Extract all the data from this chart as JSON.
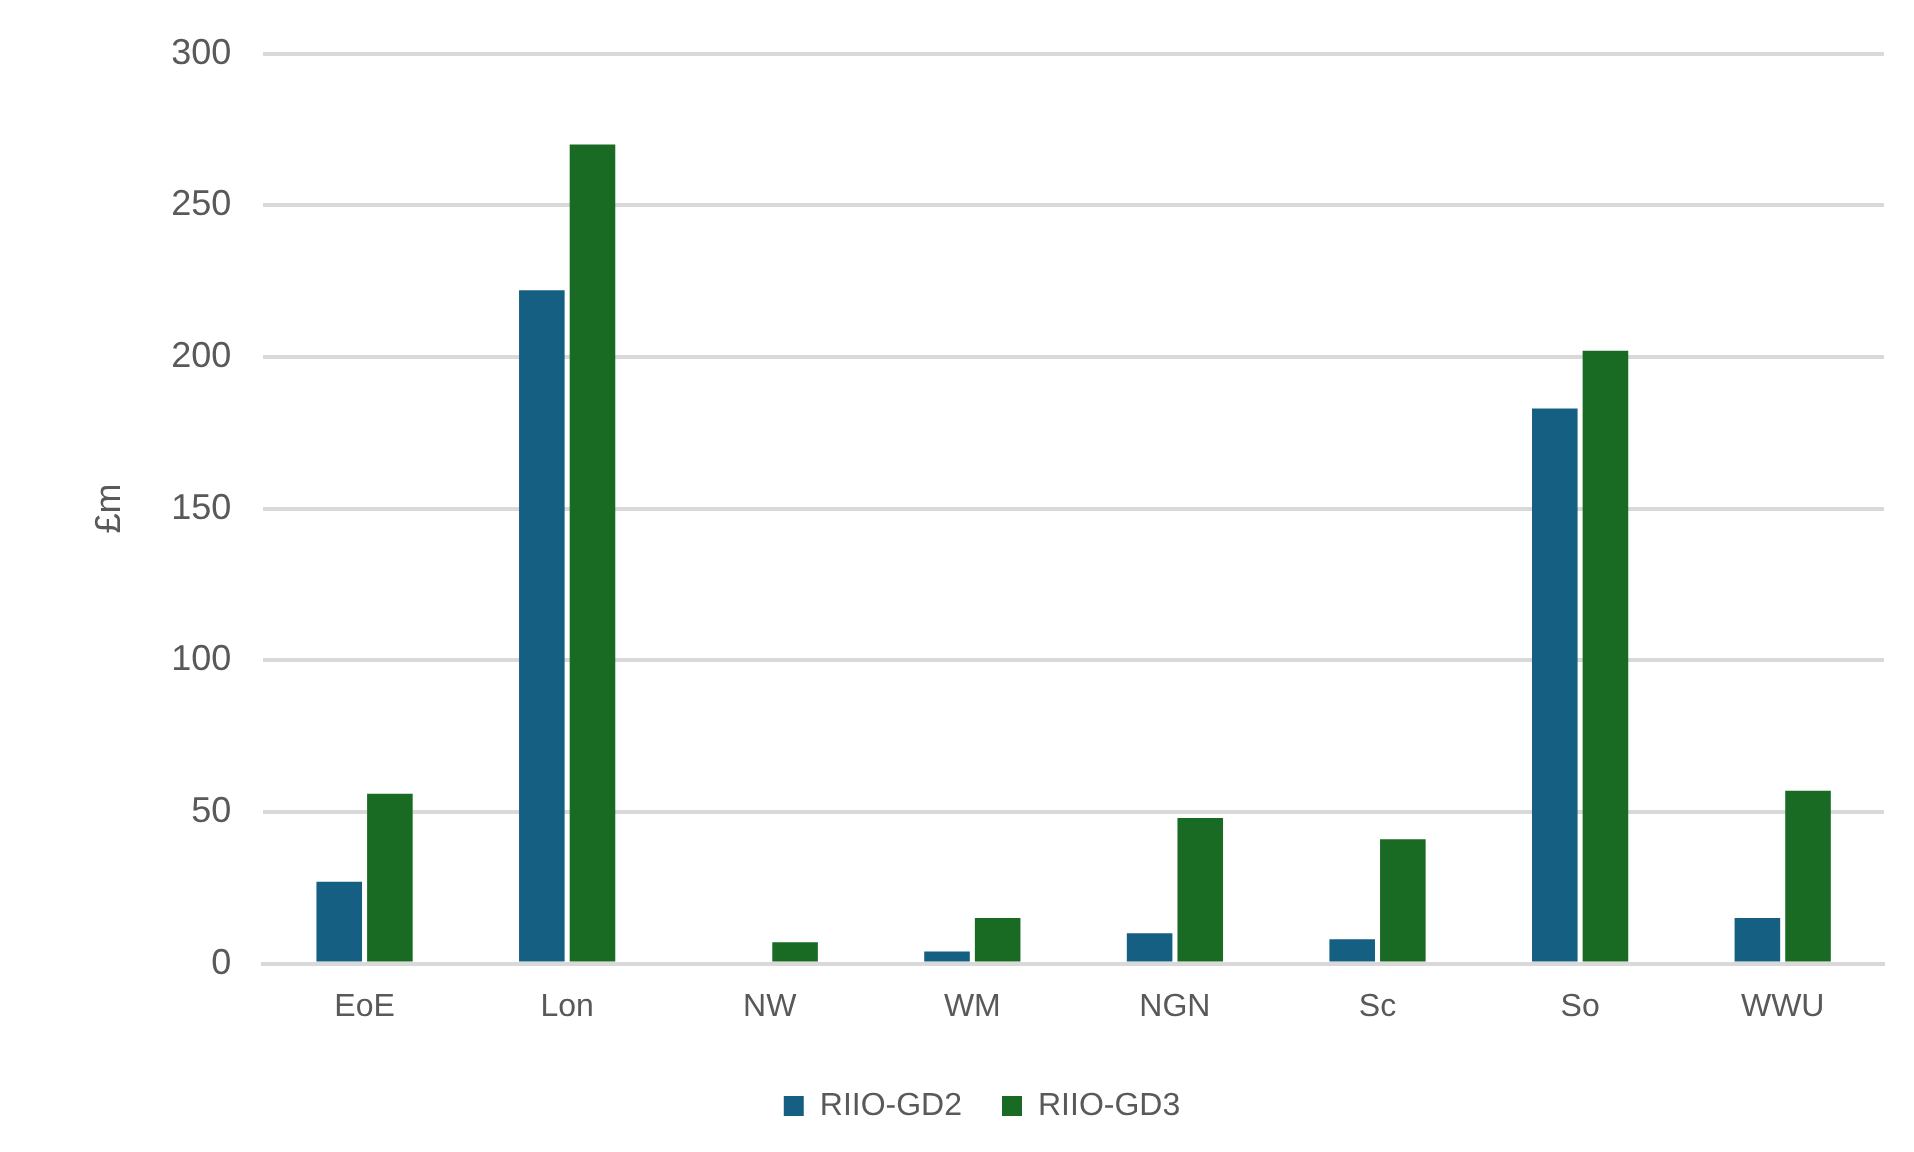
{
  "chart_data": {
    "type": "bar",
    "ylabel": "£m",
    "categories": [
      "EoE",
      "Lon",
      "NW",
      "WM",
      "NGN",
      "Sc",
      "So",
      "WWU"
    ],
    "series": [
      {
        "name": "RIIO-GD2",
        "color": "#156082",
        "values": [
          27,
          222,
          0,
          4,
          10,
          8,
          183,
          15
        ]
      },
      {
        "name": "RIIO-GD3",
        "color": "#196b24",
        "values": [
          56,
          270,
          7,
          15,
          48,
          41,
          202,
          57
        ]
      }
    ],
    "ylim": [
      0,
      300
    ],
    "yticks": [
      0,
      50,
      100,
      150,
      200,
      250,
      300
    ],
    "grid": "y",
    "legend": "bottom"
  }
}
